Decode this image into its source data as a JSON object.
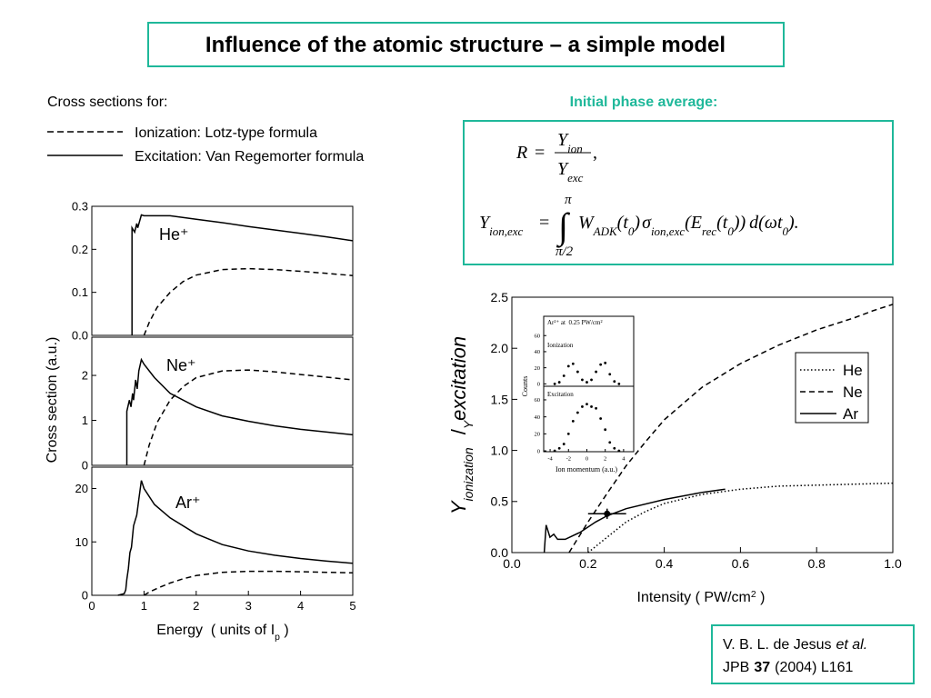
{
  "title": "Influence of the atomic structure – a simple model",
  "cross_sections_heading": "Cross sections for:",
  "legend": [
    {
      "text": "Ionization: Lotz-type formula",
      "dash": "dashed"
    },
    {
      "text": "Excitation: Van Regemorter formula",
      "dash": "solid"
    }
  ],
  "phase_heading": "Initial phase average:",
  "equation": {
    "ratio": [
      "R",
      "=",
      "Y",
      "ion",
      "Y",
      "exc",
      ","
    ],
    "integral": [
      "Y",
      "ion,exc",
      "=",
      "∫",
      "π",
      "π/2",
      "W",
      "ADK",
      "(t",
      "0",
      ")",
      "σ",
      "ion,exc",
      "(E",
      "rec",
      "(t",
      "0",
      "))",
      "d(ωt",
      "0",
      ")."
    ]
  },
  "citation": [
    [
      "V. B. L. de Jesus",
      "et al."
    ],
    [
      "JPB",
      "37",
      "(2004) L161"
    ]
  ],
  "chart_data": [
    {
      "type": "line",
      "label": "He⁺",
      "xlim": [
        0,
        5
      ],
      "ylim": [
        0,
        0.3
      ],
      "yticks": [
        {
          "value": 0,
          "label": "0.0"
        },
        0.1,
        0.2,
        0.3
      ],
      "series": [
        {
          "dash": "dashed",
          "color": "#000000",
          "x": [
            1,
            1.1,
            1.25,
            1.5,
            1.75,
            2,
            2.5,
            3,
            3.5,
            4,
            4.5,
            5
          ],
          "values": [
            0,
            0.03,
            0.065,
            0.1,
            0.125,
            0.14,
            0.153,
            0.155,
            0.153,
            0.149,
            0.144,
            0.139
          ]
        },
        {
          "dash": "solid",
          "color": "#000000",
          "x": [
            0.77,
            0.77,
            0.82,
            0.86,
            0.88,
            0.95,
            1.0,
            1.5,
            2,
            2.5,
            3,
            3.5,
            4,
            4.5,
            5
          ],
          "values": [
            0,
            0.25,
            0.24,
            0.26,
            0.25,
            0.28,
            0.278,
            0.278,
            0.27,
            0.262,
            0.253,
            0.245,
            0.237,
            0.229,
            0.22
          ]
        }
      ]
    },
    {
      "type": "line",
      "label": "Ne⁺",
      "ylabel": "Cross section (a.u.)",
      "xlim": [
        0,
        5
      ],
      "ylim": [
        0,
        2.85
      ],
      "yticks": [
        0,
        1,
        2
      ],
      "series": [
        {
          "dash": "dashed",
          "color": "#000000",
          "x": [
            1,
            1.1,
            1.25,
            1.5,
            1.75,
            2,
            2.5,
            3,
            3.5,
            4,
            4.5,
            5
          ],
          "values": [
            0,
            0.45,
            0.95,
            1.45,
            1.75,
            1.95,
            2.1,
            2.12,
            2.08,
            2.02,
            1.96,
            1.9
          ]
        },
        {
          "dash": "solid",
          "color": "#000000",
          "x": [
            0.67,
            0.67,
            0.72,
            0.75,
            0.78,
            0.8,
            0.84,
            0.87,
            0.9,
            0.95,
            1.0,
            1.2,
            1.5,
            2,
            2.5,
            3,
            3.5,
            4,
            4.5,
            5
          ],
          "values": [
            0,
            1.2,
            1.45,
            1.3,
            1.6,
            1.45,
            1.9,
            1.7,
            2.1,
            2.35,
            2.25,
            1.95,
            1.6,
            1.3,
            1.1,
            0.98,
            0.88,
            0.8,
            0.74,
            0.68
          ]
        }
      ]
    },
    {
      "type": "line",
      "label": "Ar⁺",
      "xlim": [
        0,
        5
      ],
      "ylim": [
        0,
        24
      ],
      "yticks": [
        0,
        10,
        20
      ],
      "xticks": [
        0,
        1,
        2,
        3,
        4,
        5
      ],
      "xlabel": [
        "Energy  ( units of I",
        "p",
        " )"
      ],
      "series": [
        {
          "dash": "dashed",
          "color": "#000000",
          "x": [
            1,
            1.1,
            1.25,
            1.5,
            1.75,
            2,
            2.5,
            3,
            3.5,
            4,
            4.5,
            5
          ],
          "values": [
            0,
            0.6,
            1.3,
            2.3,
            3.1,
            3.7,
            4.3,
            4.5,
            4.5,
            4.4,
            4.3,
            4.2
          ]
        },
        {
          "dash": "solid",
          "color": "#000000",
          "x": [
            0.5,
            0.62,
            0.65,
            0.67,
            0.7,
            0.73,
            0.76,
            0.8,
            0.83,
            0.86,
            0.9,
            0.95,
            1.0,
            1.2,
            1.5,
            2,
            2.5,
            3,
            3.5,
            4,
            4.5,
            5
          ],
          "values": [
            0,
            0.3,
            1,
            3,
            5,
            8,
            9,
            13,
            14,
            15,
            18,
            21.5,
            20,
            17,
            14.5,
            11.5,
            9.5,
            8.3,
            7.5,
            6.9,
            6.4,
            6.0
          ]
        }
      ]
    },
    {
      "type": "line",
      "xlim": [
        0,
        1
      ],
      "ylim": [
        0,
        2.5
      ],
      "xticks": [
        {
          "value": 0,
          "label": "0.0"
        },
        0.2,
        0.4,
        0.6,
        0.8,
        {
          "value": 1,
          "label": "1.0"
        }
      ],
      "yticks": [
        {
          "value": 0,
          "label": "0.0"
        },
        0.5,
        {
          "value": 1,
          "label": "1.0"
        },
        1.5,
        {
          "value": 2,
          "label": "2.0"
        },
        2.5
      ],
      "xlabel": [
        "Intensity ( PW/cm",
        "2",
        " )"
      ],
      "ylabel": [
        "Y",
        "ionization",
        "/",
        "Y",
        "excitation"
      ],
      "legend": "center right",
      "series": [
        {
          "name": "He",
          "dash": "dotted",
          "color": "#000000",
          "x": [
            0.2,
            0.25,
            0.3,
            0.35,
            0.4,
            0.5,
            0.6,
            0.7,
            0.8,
            0.9,
            1.0
          ],
          "values": [
            0,
            0.15,
            0.3,
            0.4,
            0.48,
            0.57,
            0.62,
            0.65,
            0.66,
            0.67,
            0.68
          ]
        },
        {
          "name": "Ne",
          "dash": "dashed",
          "color": "#000000",
          "x": [
            0.15,
            0.2,
            0.25,
            0.3,
            0.35,
            0.4,
            0.5,
            0.6,
            0.7,
            0.8,
            0.9,
            0.95,
            1.0
          ],
          "values": [
            0,
            0.3,
            0.58,
            0.85,
            1.08,
            1.3,
            1.62,
            1.85,
            2.03,
            2.18,
            2.3,
            2.37,
            2.43
          ]
        },
        {
          "name": "Ar",
          "dash": "solid",
          "color": "#000000",
          "x": [
            0.085,
            0.09,
            0.1,
            0.11,
            0.12,
            0.14,
            0.18,
            0.22,
            0.25,
            0.3,
            0.4,
            0.5,
            0.56
          ],
          "values": [
            0,
            0.27,
            0.15,
            0.18,
            0.13,
            0.13,
            0.2,
            0.3,
            0.36,
            0.43,
            0.52,
            0.59,
            0.62
          ]
        }
      ],
      "points": [
        {
          "x": 0.25,
          "y": 0.38,
          "xerr": 0.05,
          "yerr": 0.05
        }
      ]
    },
    {
      "type": "scatter",
      "label": "Ar²⁺ at  0.25 PW/cm²",
      "sublabel": "Ionization",
      "ylabel": "Counts",
      "xlim": [
        -4.7,
        5.1
      ],
      "ylim": [
        -3,
        84
      ],
      "yticks": [
        0,
        20,
        40,
        60
      ],
      "series": [
        {
          "color": "#000000",
          "x": [
            -3.5,
            -3,
            -2.5,
            -2,
            -1.5,
            -1,
            -0.5,
            0,
            0.5,
            1,
            1.5,
            2,
            2.5,
            3,
            3.5
          ],
          "values": [
            0,
            2,
            10,
            22,
            25,
            15,
            5,
            2,
            5,
            15,
            24,
            26,
            12,
            3,
            0
          ]
        }
      ]
    },
    {
      "type": "scatter",
      "label": "Excitation",
      "xlim": [
        -4.7,
        5.1
      ],
      "ylim": [
        -1,
        76
      ],
      "yticks": [
        0,
        20,
        40,
        60
      ],
      "xticks": [
        -4,
        -2,
        0,
        2,
        4
      ],
      "xlabel": [
        "Ion momentum (a.u.)"
      ],
      "series": [
        {
          "color": "#000000",
          "x": [
            -3.5,
            -3,
            -2.5,
            -2,
            -1.5,
            -1,
            -0.5,
            0,
            0.5,
            1,
            1.5,
            2,
            2.5,
            3,
            3.5
          ],
          "values": [
            0,
            3,
            8,
            20,
            35,
            45,
            52,
            55,
            52,
            50,
            38,
            25,
            10,
            3,
            0
          ]
        }
      ]
    }
  ]
}
